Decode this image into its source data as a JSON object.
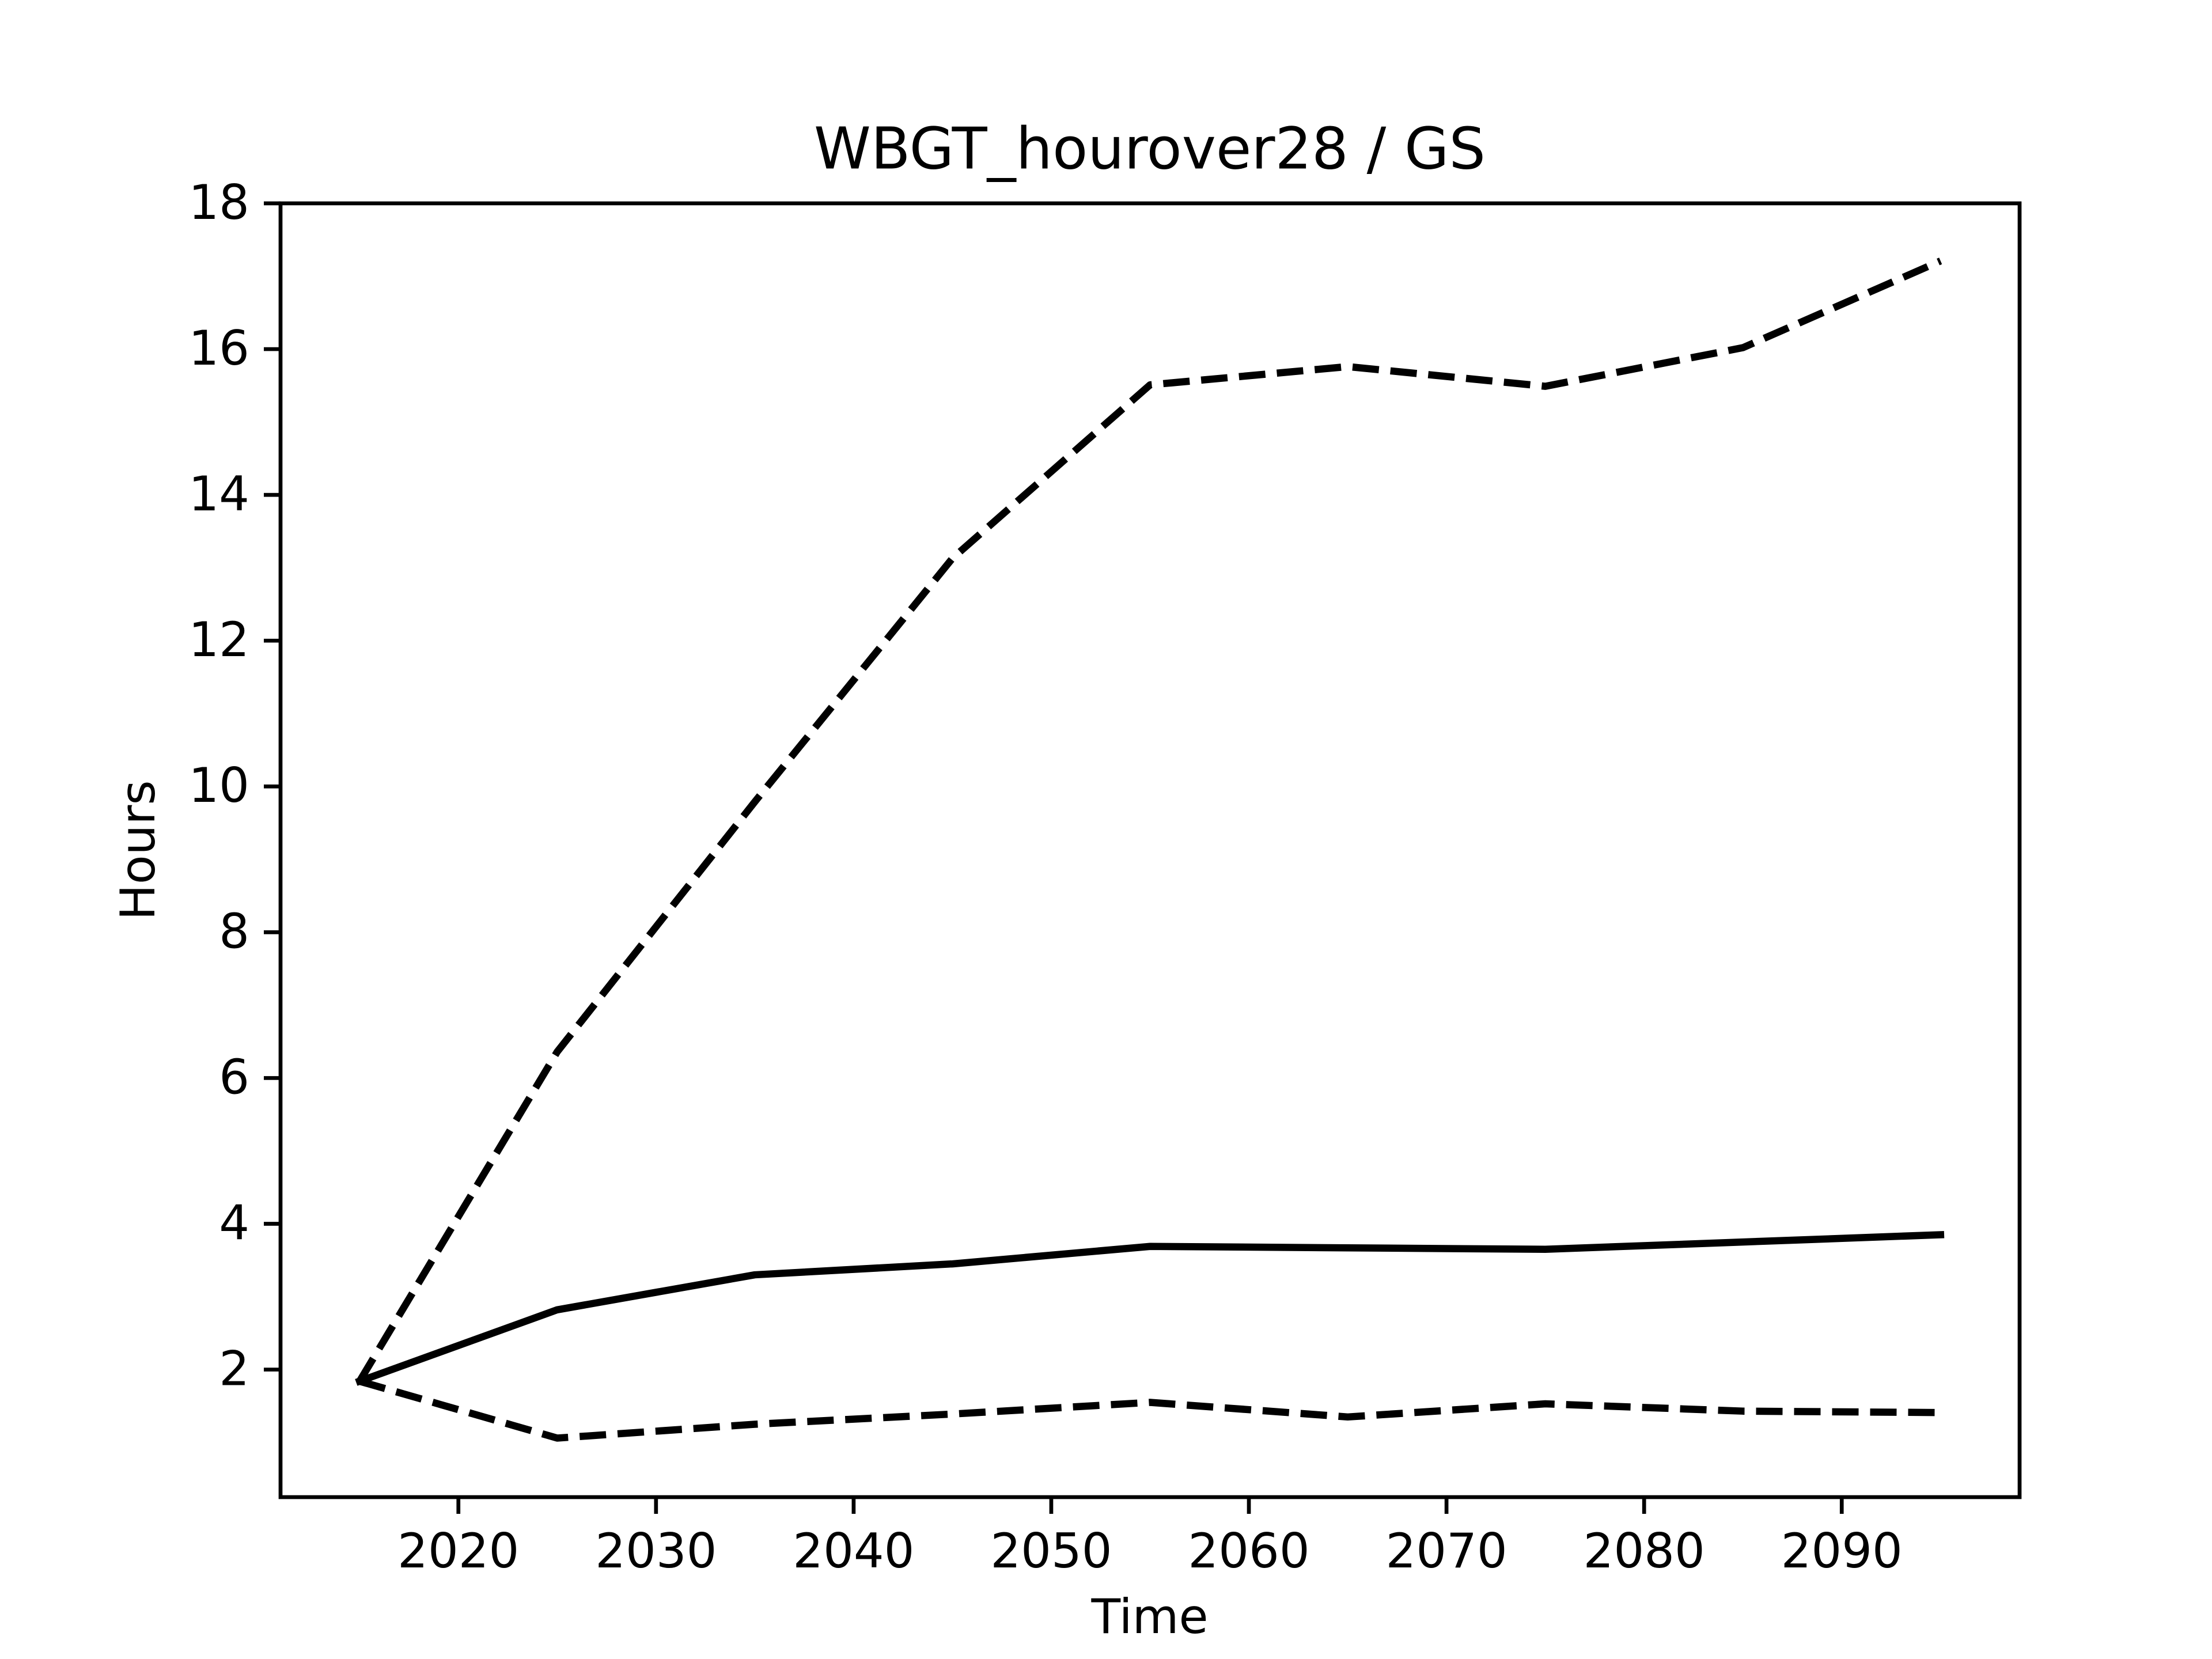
{
  "chart_data": {
    "type": "line",
    "title": "WBGT_hourover28 / GS",
    "x_label": "Time",
    "y_label": "Hours",
    "x": [
      2015,
      2025,
      2035,
      2045,
      2055,
      2065,
      2075,
      2085,
      2095
    ],
    "series": [
      {
        "color": "#000000",
        "linestyle": "solid",
        "values": [
          1.84,
          2.82,
          3.3,
          3.45,
          3.69,
          3.67,
          3.65,
          3.75,
          3.85
        ]
      },
      {
        "color": "#000000",
        "linestyle": "dashed",
        "values": [
          1.84,
          6.36,
          9.79,
          13.13,
          15.51,
          15.76,
          15.49,
          16.02,
          17.21
        ]
      },
      {
        "color": "#000000",
        "linestyle": "dashed",
        "values": [
          1.84,
          1.06,
          1.25,
          1.39,
          1.55,
          1.35,
          1.53,
          1.43,
          1.41
        ]
      }
    ],
    "xlim": [
      2011,
      2099
    ],
    "ylim": [
      0.25,
      18
    ],
    "xticks": [
      2020,
      2030,
      2040,
      2050,
      2060,
      2070,
      2080,
      2090
    ],
    "yticks": [
      2,
      4,
      6,
      8,
      10,
      12,
      14,
      16,
      18
    ],
    "grid": false
  }
}
